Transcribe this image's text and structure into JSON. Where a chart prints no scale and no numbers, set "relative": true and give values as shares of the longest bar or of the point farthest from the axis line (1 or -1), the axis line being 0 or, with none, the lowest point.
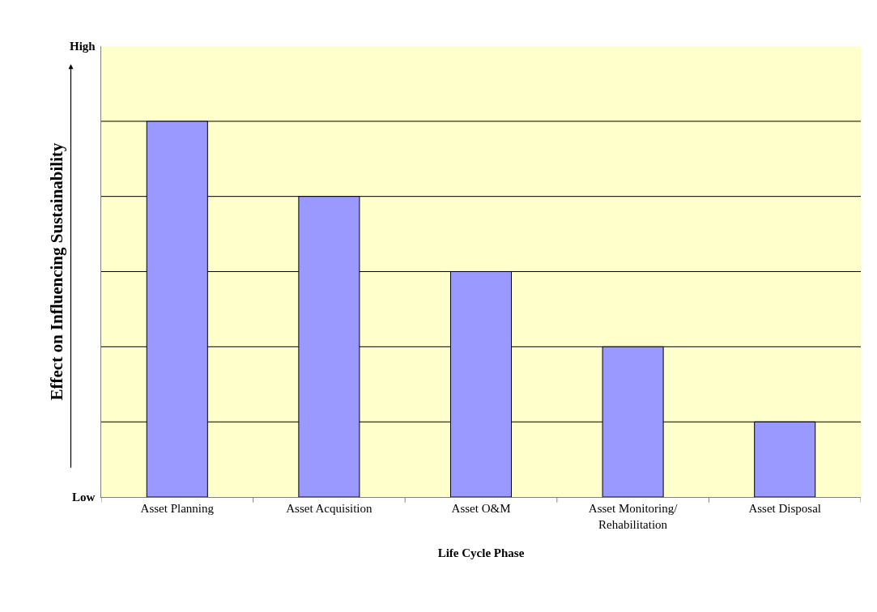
{
  "chart_data": {
    "type": "bar",
    "relative": true,
    "xlabel": "Life Cycle Phase",
    "ylabel": "Effect on Influencing Sustainability",
    "categories": [
      "Asset Planning",
      "Asset Acquisition",
      "Asset O&M",
      "Asset Monitoring/\nRehabilitation",
      "Asset Disposal"
    ],
    "values": [
      1,
      0.8,
      0.6,
      0.4,
      0.2
    ],
    "color": "#9999ff",
    "annotations": [
      "High",
      "Low"
    ],
    "ref_lines": [
      {
        "axis": "y",
        "value": 0.2,
        "color": "#000000"
      },
      {
        "axis": "y",
        "value": 0.4,
        "color": "#000000"
      },
      {
        "axis": "y",
        "value": 0.6,
        "color": "#000000"
      },
      {
        "axis": "y",
        "value": 0.8,
        "color": "#000000"
      },
      {
        "axis": "y",
        "value": 1,
        "color": "#000000"
      }
    ]
  }
}
